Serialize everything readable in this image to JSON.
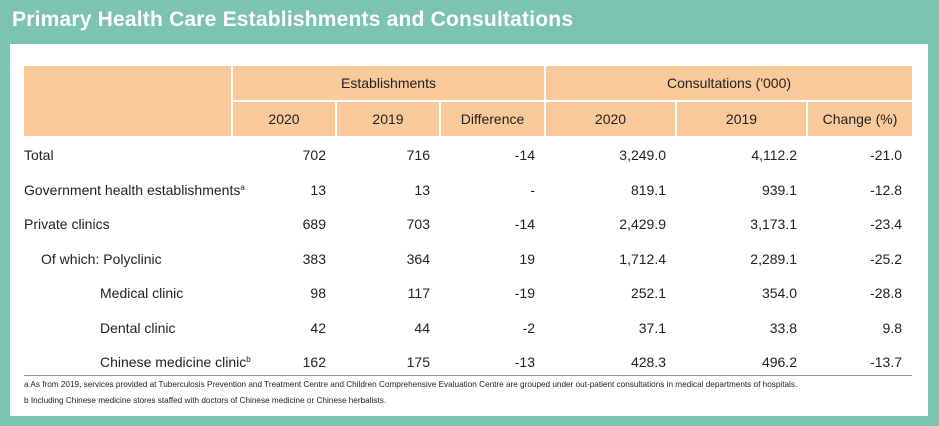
{
  "title": "Primary Health Care Establishments and Consultations",
  "header": {
    "establishments": "Establishments",
    "consultations": "Consultations ('000)",
    "sub": [
      "2020",
      "2019",
      "Difference",
      "2020",
      "2019",
      "Change (%)"
    ]
  },
  "rows": [
    {
      "label": "Total",
      "sup": "",
      "est_2020": "702",
      "est_2019": "716",
      "est_diff": "-14",
      "con_2020": "3,249.0",
      "con_2019": "4,112.2",
      "con_change": "-21.0"
    },
    {
      "label": "Government health establishments",
      "sup": "a",
      "est_2020": "13",
      "est_2019": "13",
      "est_diff": "-",
      "con_2020": "819.1",
      "con_2019": "939.1",
      "con_change": "-12.8"
    },
    {
      "label": "Private clinics",
      "sup": "",
      "est_2020": "689",
      "est_2019": "703",
      "est_diff": "-14",
      "con_2020": "2,429.9",
      "con_2019": "3,173.1",
      "con_change": "-23.4"
    },
    {
      "label": "Of which: Polyclinic",
      "sup": "",
      "est_2020": "383",
      "est_2019": "364",
      "est_diff": "19",
      "con_2020": "1,712.4",
      "con_2019": "2,289.1",
      "con_change": "-25.2"
    },
    {
      "label": "Medical clinic",
      "sup": "",
      "est_2020": "98",
      "est_2019": "117",
      "est_diff": "-19",
      "con_2020": "252.1",
      "con_2019": "354.0",
      "con_change": "-28.8"
    },
    {
      "label": "Dental clinic",
      "sup": "",
      "est_2020": "42",
      "est_2019": "44",
      "est_diff": "-2",
      "con_2020": "37.1",
      "con_2019": "33.8",
      "con_change": "9.8"
    },
    {
      "label": "Chinese medicine clinic",
      "sup": "b",
      "est_2020": "162",
      "est_2019": "175",
      "est_diff": "-13",
      "con_2020": "428.3",
      "con_2019": "496.2",
      "con_change": "-13.7"
    }
  ],
  "footnotes": [
    "a As from 2019, services provided at Tuberculosis Prevention and Treatment Centre and Children Comprehensive Evaluation Centre are grouped under out-patient consultations in medical departments of hospitals.",
    "b Including Chinese medicine stores staffed with doctors of Chinese medicine or Chinese herbalists."
  ],
  "colors": {
    "background": "#7dc3b2",
    "header_fill": "#fac99a",
    "panel": "#ffffff"
  }
}
